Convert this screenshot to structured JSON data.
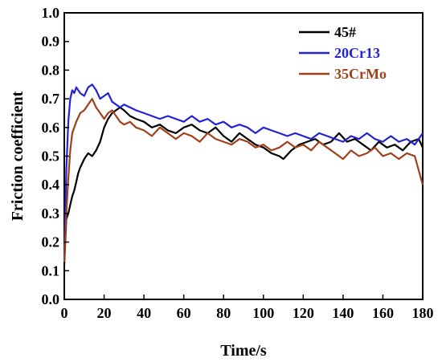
{
  "chart_data": {
    "type": "line",
    "xlabel": "Time/s",
    "ylabel": "Friction  coefficient",
    "xlim": [
      0,
      180
    ],
    "ylim": [
      0.0,
      1.0
    ],
    "xticks": [
      "0",
      "20",
      "40",
      "60",
      "80",
      "100",
      "120",
      "140",
      "160",
      "180"
    ],
    "yticks": [
      "0.0",
      "0.1",
      "0.2",
      "0.3",
      "0.4",
      "0.5",
      "0.6",
      "0.7",
      "0.8",
      "0.9",
      "1.0"
    ],
    "grid": false,
    "legend_position": "top-right",
    "series": [
      {
        "name": "45#",
        "color": "#000000",
        "x": [
          0,
          1,
          2,
          3,
          4,
          5,
          6,
          7,
          8,
          10,
          12,
          14,
          16,
          18,
          20,
          22,
          24,
          26,
          28,
          30,
          33,
          36,
          40,
          44,
          48,
          52,
          56,
          60,
          64,
          68,
          72,
          76,
          80,
          84,
          88,
          92,
          96,
          100,
          104,
          108,
          110,
          114,
          118,
          122,
          126,
          130,
          134,
          138,
          142,
          146,
          150,
          154,
          158,
          162,
          166,
          170,
          174,
          178,
          180
        ],
        "y": [
          0.12,
          0.28,
          0.3,
          0.33,
          0.36,
          0.38,
          0.41,
          0.44,
          0.46,
          0.49,
          0.51,
          0.5,
          0.52,
          0.55,
          0.6,
          0.63,
          0.65,
          0.66,
          0.67,
          0.66,
          0.64,
          0.63,
          0.62,
          0.6,
          0.61,
          0.59,
          0.58,
          0.6,
          0.61,
          0.59,
          0.58,
          0.6,
          0.57,
          0.55,
          0.58,
          0.56,
          0.54,
          0.53,
          0.51,
          0.5,
          0.49,
          0.52,
          0.54,
          0.55,
          0.56,
          0.54,
          0.55,
          0.58,
          0.55,
          0.56,
          0.54,
          0.52,
          0.55,
          0.53,
          0.54,
          0.52,
          0.55,
          0.56,
          0.53
        ]
      },
      {
        "name": "20Cr13",
        "color": "#2323d6",
        "x": [
          0,
          1,
          2,
          3,
          4,
          5,
          6,
          8,
          10,
          12,
          14,
          16,
          18,
          20,
          22,
          24,
          26,
          28,
          30,
          33,
          36,
          40,
          44,
          48,
          52,
          56,
          60,
          64,
          68,
          72,
          76,
          80,
          84,
          88,
          92,
          96,
          100,
          104,
          108,
          112,
          116,
          120,
          124,
          128,
          132,
          136,
          140,
          144,
          148,
          152,
          156,
          160,
          164,
          168,
          172,
          176,
          180
        ],
        "y": [
          0.15,
          0.45,
          0.62,
          0.7,
          0.73,
          0.72,
          0.74,
          0.72,
          0.71,
          0.74,
          0.75,
          0.73,
          0.7,
          0.71,
          0.72,
          0.69,
          0.68,
          0.67,
          0.68,
          0.67,
          0.66,
          0.65,
          0.64,
          0.63,
          0.64,
          0.63,
          0.62,
          0.64,
          0.62,
          0.63,
          0.61,
          0.62,
          0.6,
          0.61,
          0.6,
          0.58,
          0.6,
          0.59,
          0.58,
          0.57,
          0.58,
          0.57,
          0.56,
          0.58,
          0.57,
          0.56,
          0.55,
          0.57,
          0.56,
          0.58,
          0.56,
          0.55,
          0.57,
          0.55,
          0.56,
          0.54,
          0.58
        ]
      },
      {
        "name": "35CrMo",
        "color": "#a0401a",
        "x": [
          0,
          1,
          2,
          3,
          4,
          5,
          6,
          8,
          10,
          12,
          14,
          16,
          18,
          20,
          22,
          24,
          26,
          28,
          30,
          33,
          36,
          40,
          44,
          48,
          52,
          56,
          60,
          64,
          68,
          72,
          76,
          80,
          84,
          88,
          92,
          96,
          100,
          104,
          108,
          112,
          116,
          120,
          124,
          128,
          132,
          136,
          140,
          144,
          148,
          152,
          156,
          160,
          164,
          168,
          172,
          176,
          180
        ],
        "y": [
          0.13,
          0.3,
          0.42,
          0.52,
          0.58,
          0.6,
          0.62,
          0.65,
          0.66,
          0.68,
          0.7,
          0.67,
          0.65,
          0.63,
          0.65,
          0.66,
          0.64,
          0.62,
          0.61,
          0.62,
          0.6,
          0.59,
          0.57,
          0.6,
          0.58,
          0.56,
          0.58,
          0.57,
          0.55,
          0.58,
          0.56,
          0.55,
          0.54,
          0.56,
          0.55,
          0.53,
          0.54,
          0.52,
          0.53,
          0.55,
          0.53,
          0.54,
          0.52,
          0.55,
          0.53,
          0.51,
          0.49,
          0.52,
          0.5,
          0.51,
          0.53,
          0.5,
          0.51,
          0.49,
          0.51,
          0.5,
          0.4
        ]
      }
    ]
  }
}
